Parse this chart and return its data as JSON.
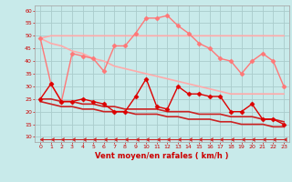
{
  "background_color": "#c8eaea",
  "grid_color": "#aacccc",
  "xlabel": "Vent moyen/en rafales ( km/h )",
  "x": [
    0,
    1,
    2,
    3,
    4,
    5,
    6,
    7,
    8,
    9,
    10,
    11,
    12,
    13,
    14,
    15,
    16,
    17,
    18,
    19,
    20,
    21,
    22,
    23
  ],
  "ylim": [
    8,
    62
  ],
  "yticks": [
    10,
    15,
    20,
    25,
    30,
    35,
    40,
    45,
    50,
    55,
    60
  ],
  "series": [
    {
      "label": "pink_flat_top",
      "color": "#ffaaaa",
      "linewidth": 1.2,
      "marker": null,
      "linestyle": "-",
      "data": [
        49,
        50,
        50,
        50,
        50,
        50,
        50,
        50,
        50,
        50,
        50,
        50,
        50,
        50,
        50,
        50,
        50,
        50,
        50,
        50,
        50,
        50,
        50,
        50
      ]
    },
    {
      "label": "pink_diagonal",
      "color": "#ffaaaa",
      "linewidth": 1.2,
      "marker": null,
      "linestyle": "-",
      "data": [
        49,
        47,
        46,
        44,
        43,
        41,
        40,
        38,
        37,
        36,
        35,
        34,
        33,
        32,
        31,
        30,
        29,
        28,
        27,
        27,
        27,
        27,
        27,
        27
      ]
    },
    {
      "label": "pink_markers",
      "color": "#ff7777",
      "linewidth": 1.0,
      "marker": "D",
      "markersize": 2.5,
      "linestyle": "-",
      "data": [
        49,
        31,
        24,
        43,
        42,
        41,
        36,
        46,
        46,
        51,
        57,
        57,
        58,
        54,
        51,
        47,
        45,
        41,
        40,
        35,
        40,
        43,
        40,
        30
      ]
    },
    {
      "label": "red_upper_slope",
      "color": "#cc2222",
      "linewidth": 1.2,
      "marker": null,
      "linestyle": "-",
      "data": [
        25,
        25,
        24,
        24,
        23,
        23,
        22,
        22,
        21,
        21,
        21,
        21,
        20,
        20,
        20,
        19,
        19,
        19,
        18,
        18,
        18,
        17,
        17,
        16
      ]
    },
    {
      "label": "red_lower_slope",
      "color": "#cc2222",
      "linewidth": 1.2,
      "marker": null,
      "linestyle": "-",
      "data": [
        24,
        23,
        22,
        22,
        21,
        21,
        20,
        20,
        20,
        19,
        19,
        19,
        18,
        18,
        17,
        17,
        17,
        16,
        16,
        15,
        15,
        15,
        14,
        14
      ]
    },
    {
      "label": "red_markers",
      "color": "#dd0000",
      "linewidth": 1.0,
      "marker": "D",
      "markersize": 2.5,
      "linestyle": "-",
      "data": [
        25,
        31,
        24,
        24,
        25,
        24,
        23,
        20,
        20,
        26,
        33,
        22,
        21,
        30,
        27,
        27,
        26,
        26,
        20,
        20,
        23,
        17,
        17,
        15
      ]
    },
    {
      "label": "arrow_line",
      "color": "#cc2222",
      "linewidth": 0.8,
      "marker": 4,
      "markersize": 3,
      "linestyle": "-",
      "data": [
        9,
        9,
        9,
        9,
        9,
        9,
        9,
        9,
        9,
        9,
        9,
        9,
        9,
        9,
        9,
        9,
        9,
        9,
        9,
        9,
        9,
        9,
        9,
        9
      ]
    }
  ]
}
